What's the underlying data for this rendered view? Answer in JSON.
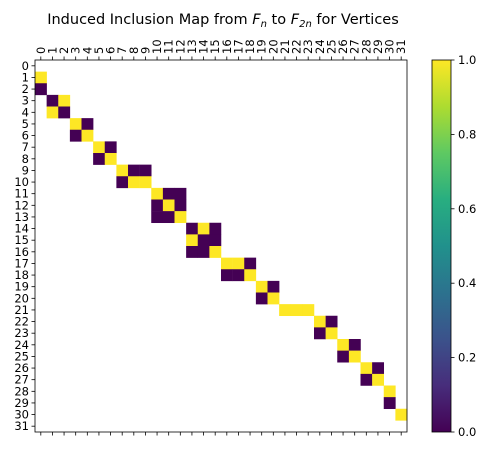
{
  "chart_data": {
    "type": "heatmap",
    "title": {
      "prefix": "Induced Inclusion Map from ",
      "f1": "F",
      "f1_sub": "n",
      "middle": " to ",
      "f2": "F",
      "f2_sub": "2n",
      "suffix": " for Vertices"
    },
    "x_ticks": [
      "0",
      "1",
      "2",
      "3",
      "4",
      "5",
      "6",
      "7",
      "8",
      "9",
      "10",
      "11",
      "12",
      "13",
      "14",
      "15",
      "16",
      "17",
      "18",
      "19",
      "20",
      "21",
      "22",
      "23",
      "24",
      "25",
      "26",
      "27",
      "28",
      "29",
      "30",
      "31"
    ],
    "y_ticks": [
      "0",
      "1",
      "2",
      "3",
      "4",
      "5",
      "6",
      "7",
      "8",
      "9",
      "10",
      "11",
      "12",
      "13",
      "14",
      "15",
      "16",
      "17",
      "18",
      "19",
      "20",
      "21",
      "22",
      "23",
      "24",
      "25",
      "26",
      "27",
      "28",
      "29",
      "30",
      "31"
    ],
    "colormap": "viridis",
    "vmin": 0,
    "vmax": 1,
    "colorbar_ticks": [
      "0.0",
      "0.2",
      "0.4",
      "0.6",
      "0.8",
      "1.0"
    ],
    "background_color": "#ffffff",
    "cells": [
      {
        "row": 1,
        "col": 0,
        "value": 1
      },
      {
        "row": 2,
        "col": 0,
        "value": 0
      },
      {
        "row": 3,
        "col": 1,
        "value": 0
      },
      {
        "row": 3,
        "col": 2,
        "value": 1
      },
      {
        "row": 4,
        "col": 1,
        "value": 1
      },
      {
        "row": 4,
        "col": 2,
        "value": 0
      },
      {
        "row": 5,
        "col": 3,
        "value": 1
      },
      {
        "row": 5,
        "col": 4,
        "value": 0
      },
      {
        "row": 6,
        "col": 3,
        "value": 0
      },
      {
        "row": 6,
        "col": 4,
        "value": 1
      },
      {
        "row": 7,
        "col": 5,
        "value": 1
      },
      {
        "row": 7,
        "col": 6,
        "value": 0
      },
      {
        "row": 8,
        "col": 5,
        "value": 0
      },
      {
        "row": 8,
        "col": 6,
        "value": 1
      },
      {
        "row": 9,
        "col": 7,
        "value": 1
      },
      {
        "row": 9,
        "col": 8,
        "value": 0
      },
      {
        "row": 9,
        "col": 9,
        "value": 0
      },
      {
        "row": 10,
        "col": 7,
        "value": 0
      },
      {
        "row": 10,
        "col": 8,
        "value": 1
      },
      {
        "row": 10,
        "col": 9,
        "value": 1
      },
      {
        "row": 11,
        "col": 10,
        "value": 1
      },
      {
        "row": 11,
        "col": 11,
        "value": 0
      },
      {
        "row": 11,
        "col": 12,
        "value": 0
      },
      {
        "row": 12,
        "col": 10,
        "value": 0
      },
      {
        "row": 12,
        "col": 11,
        "value": 1
      },
      {
        "row": 12,
        "col": 12,
        "value": 0
      },
      {
        "row": 13,
        "col": 10,
        "value": 0
      },
      {
        "row": 13,
        "col": 11,
        "value": 0
      },
      {
        "row": 13,
        "col": 12,
        "value": 1
      },
      {
        "row": 14,
        "col": 13,
        "value": 0
      },
      {
        "row": 14,
        "col": 14,
        "value": 1
      },
      {
        "row": 14,
        "col": 15,
        "value": 0
      },
      {
        "row": 15,
        "col": 13,
        "value": 1
      },
      {
        "row": 15,
        "col": 14,
        "value": 0
      },
      {
        "row": 15,
        "col": 15,
        "value": 0
      },
      {
        "row": 16,
        "col": 13,
        "value": 0
      },
      {
        "row": 16,
        "col": 14,
        "value": 0
      },
      {
        "row": 16,
        "col": 15,
        "value": 1
      },
      {
        "row": 17,
        "col": 16,
        "value": 1
      },
      {
        "row": 17,
        "col": 17,
        "value": 1
      },
      {
        "row": 17,
        "col": 18,
        "value": 0
      },
      {
        "row": 18,
        "col": 16,
        "value": 0
      },
      {
        "row": 18,
        "col": 17,
        "value": 0
      },
      {
        "row": 18,
        "col": 18,
        "value": 1
      },
      {
        "row": 19,
        "col": 19,
        "value": 1
      },
      {
        "row": 19,
        "col": 20,
        "value": 0
      },
      {
        "row": 20,
        "col": 19,
        "value": 0
      },
      {
        "row": 20,
        "col": 20,
        "value": 1
      },
      {
        "row": 21,
        "col": 21,
        "value": 1
      },
      {
        "row": 21,
        "col": 22,
        "value": 1
      },
      {
        "row": 21,
        "col": 23,
        "value": 1
      },
      {
        "row": 22,
        "col": 24,
        "value": 1
      },
      {
        "row": 22,
        "col": 25,
        "value": 0
      },
      {
        "row": 23,
        "col": 24,
        "value": 0
      },
      {
        "row": 23,
        "col": 25,
        "value": 1
      },
      {
        "row": 24,
        "col": 26,
        "value": 1
      },
      {
        "row": 24,
        "col": 27,
        "value": 0
      },
      {
        "row": 25,
        "col": 26,
        "value": 0
      },
      {
        "row": 25,
        "col": 27,
        "value": 1
      },
      {
        "row": 26,
        "col": 28,
        "value": 1
      },
      {
        "row": 26,
        "col": 29,
        "value": 0
      },
      {
        "row": 27,
        "col": 28,
        "value": 0
      },
      {
        "row": 27,
        "col": 29,
        "value": 1
      },
      {
        "row": 28,
        "col": 30,
        "value": 1
      },
      {
        "row": 29,
        "col": 30,
        "value": 0
      },
      {
        "row": 30,
        "col": 31,
        "value": 1
      }
    ]
  }
}
